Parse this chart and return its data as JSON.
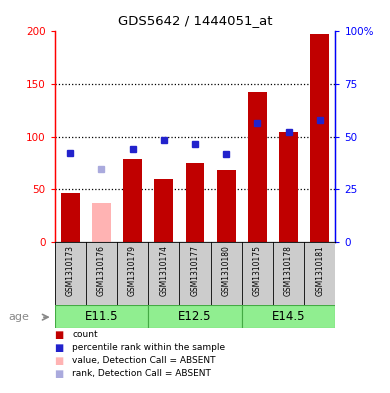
{
  "title": "GDS5642 / 1444051_at",
  "samples": [
    "GSM1310173",
    "GSM1310176",
    "GSM1310179",
    "GSM1310174",
    "GSM1310177",
    "GSM1310180",
    "GSM1310175",
    "GSM1310178",
    "GSM1310181"
  ],
  "count_values": [
    46,
    37,
    79,
    60,
    75,
    68,
    142,
    104,
    198
  ],
  "count_absent": [
    false,
    true,
    false,
    false,
    false,
    false,
    false,
    false,
    false
  ],
  "rank_values": [
    84,
    69,
    88,
    97,
    93,
    83,
    113,
    104,
    116
  ],
  "rank_absent": [
    false,
    true,
    false,
    false,
    false,
    false,
    false,
    false,
    false
  ],
  "age_groups": [
    {
      "label": "E11.5",
      "start": 0,
      "end": 3
    },
    {
      "label": "E12.5",
      "start": 3,
      "end": 6
    },
    {
      "label": "E14.5",
      "start": 6,
      "end": 9
    }
  ],
  "ylim_left": [
    0,
    200
  ],
  "yticks_left": [
    0,
    50,
    100,
    150,
    200
  ],
  "ytick_labels_left": [
    "0",
    "50",
    "100",
    "150",
    "200"
  ],
  "yticks_right_pos": [
    0,
    50,
    100,
    150,
    200
  ],
  "ytick_labels_right": [
    "0",
    "25",
    "50",
    "75",
    "100%"
  ],
  "grid_values": [
    50,
    100,
    150
  ],
  "bar_color_normal": "#C00000",
  "bar_color_absent": "#FFB3B3",
  "rank_color_normal": "#2222CC",
  "rank_color_absent": "#AAAADD",
  "age_bg_color": "#90EE90",
  "tick_label_area_color": "#CCCCCC",
  "legend_items": [
    {
      "color": "#C00000",
      "label": "count"
    },
    {
      "color": "#2222CC",
      "label": "percentile rank within the sample"
    },
    {
      "color": "#FFB3B3",
      "label": "value, Detection Call = ABSENT"
    },
    {
      "color": "#AAAADD",
      "label": "rank, Detection Call = ABSENT"
    }
  ]
}
